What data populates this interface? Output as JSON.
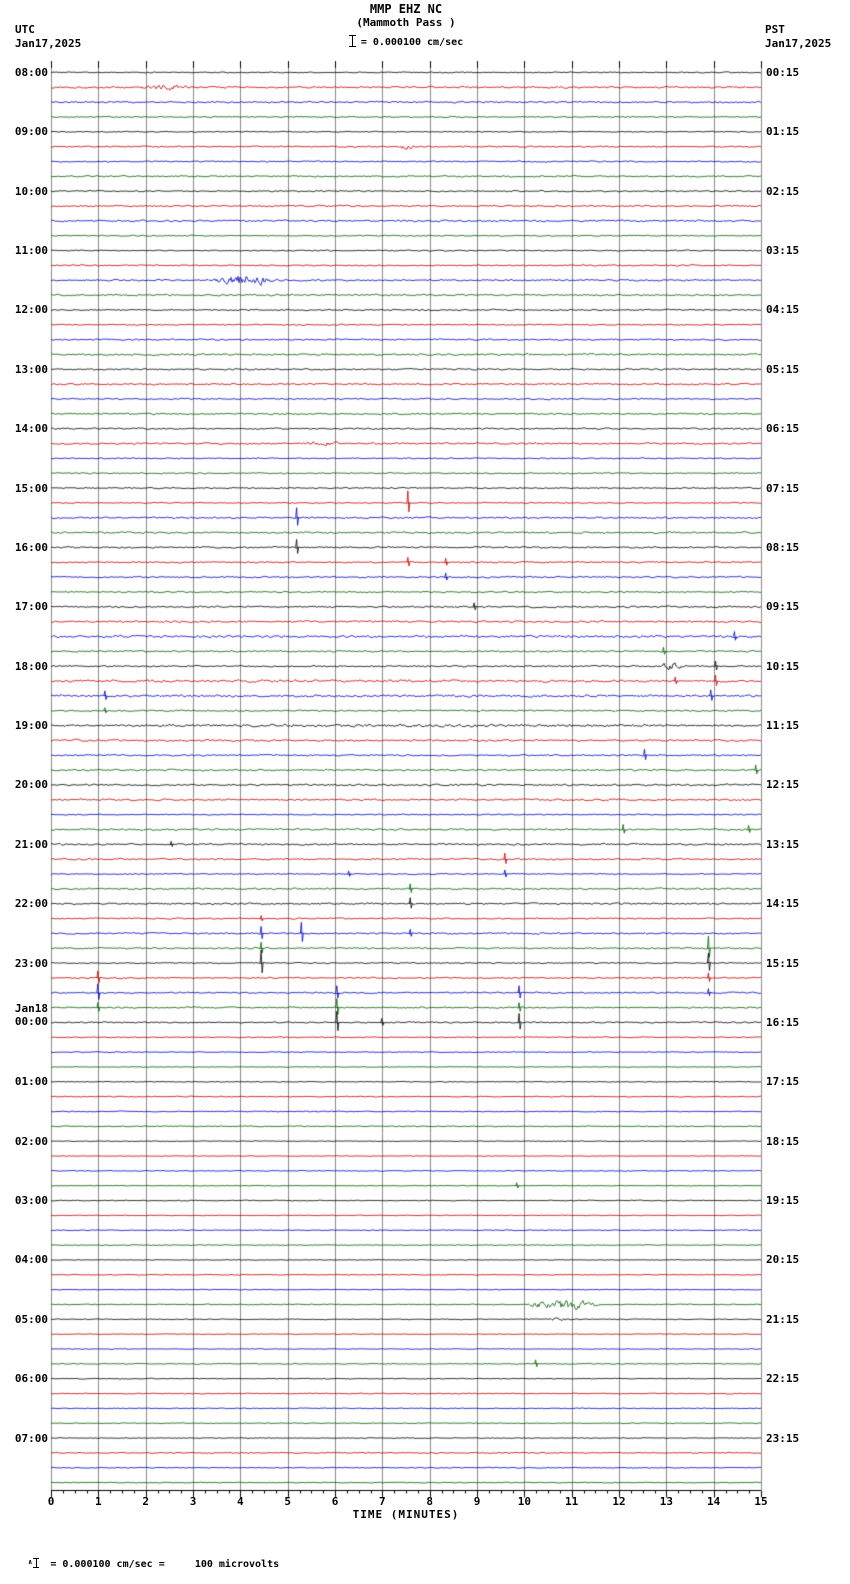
{
  "header": {
    "station_title": "MMP EHZ NC",
    "station_subtitle": "(Mammoth Pass )",
    "scale_text": "= 0.000100 cm/sec",
    "left_timezone": "UTC",
    "left_date": "Jan17,2025",
    "right_timezone": "PST",
    "right_date": "Jan17,2025"
  },
  "footer": {
    "x_axis_label": "TIME (MINUTES)",
    "calibration_text": " = 0.000100 cm/sec =     100 microvolts"
  },
  "icons": {
    "amplitude_caret": "∧"
  },
  "colors": {
    "background": "#ffffff",
    "grid": "#8a8a8a",
    "axis": "#000000",
    "trace_sequence": [
      "#000000",
      "#c00000",
      "#0000c0",
      "#006000"
    ]
  },
  "chart_data": {
    "type": "line",
    "title": "MMP EHZ NC (Mammoth Pass) helicorder, 24 hours of 15-minute traces",
    "xlabel": "TIME (MINUTES)",
    "x_range_minutes": [
      0,
      15
    ],
    "x_ticks": [
      "0",
      "1",
      "2",
      "3",
      "4",
      "5",
      "6",
      "7",
      "8",
      "9",
      "10",
      "11",
      "12",
      "13",
      "14",
      "15"
    ],
    "rows": 96,
    "minutes_per_row": 15,
    "row_color_cycle": [
      "black",
      "red",
      "blue",
      "green"
    ],
    "utc_hour_labels": [
      "08:00",
      "09:00",
      "10:00",
      "11:00",
      "12:00",
      "13:00",
      "14:00",
      "15:00",
      "16:00",
      "17:00",
      "18:00",
      "19:00",
      "20:00",
      "21:00",
      "22:00",
      "23:00",
      "Jan18|00:00",
      "01:00",
      "02:00",
      "03:00",
      "04:00",
      "05:00",
      "06:00",
      "07:00"
    ],
    "pst_hour_labels": [
      "00:15",
      "01:15",
      "02:15",
      "03:15",
      "04:15",
      "05:15",
      "06:15",
      "07:15",
      "08:15",
      "09:15",
      "10:15",
      "11:15",
      "12:15",
      "13:15",
      "14:15",
      "15:15",
      "16:15",
      "17:15",
      "18:15",
      "19:15",
      "20:15",
      "21:15",
      "22:15",
      "23:15"
    ],
    "events": [
      {
        "row": 1,
        "type": "burst",
        "m0": 1.85,
        "m1": 2.9,
        "amp": 3.5
      },
      {
        "row": 5,
        "type": "burst",
        "m0": 7.3,
        "m1": 7.75,
        "amp": 2.5
      },
      {
        "row": 14,
        "type": "burst",
        "m0": 3.4,
        "m1": 4.8,
        "amp": 7
      },
      {
        "row": 25,
        "type": "burst",
        "m0": 5.2,
        "m1": 6.1,
        "amp": 3
      },
      {
        "row": 29,
        "type": "spike",
        "m": 7.55,
        "amp": 12
      },
      {
        "row": 30,
        "type": "spike",
        "m": 5.2,
        "amp": 10
      },
      {
        "row": 32,
        "type": "spike",
        "m": 5.2,
        "amp": 8
      },
      {
        "row": 33,
        "type": "spike",
        "m": 7.55,
        "amp": 5
      },
      {
        "row": 33,
        "type": "spike",
        "m": 8.35,
        "amp": 4
      },
      {
        "row": 34,
        "type": "spike",
        "m": 8.35,
        "amp": 4
      },
      {
        "row": 36,
        "type": "spike",
        "m": 8.95,
        "amp": 4
      },
      {
        "row": 38,
        "type": "spike",
        "m": 14.45,
        "amp": 5
      },
      {
        "row": 39,
        "type": "spike",
        "m": 12.95,
        "amp": 4
      },
      {
        "row": 40,
        "type": "burst",
        "m0": 12.85,
        "m1": 13.35,
        "amp": 5
      },
      {
        "row": 40,
        "type": "spike",
        "m": 14.05,
        "amp": 5
      },
      {
        "row": 41,
        "type": "spike",
        "m": 13.2,
        "amp": 4
      },
      {
        "row": 41,
        "type": "spike",
        "m": 14.05,
        "amp": 6
      },
      {
        "row": 42,
        "type": "spike",
        "m": 1.15,
        "amp": 5
      },
      {
        "row": 42,
        "type": "spike",
        "m": 13.95,
        "amp": 6
      },
      {
        "row": 43,
        "type": "spike",
        "m": 1.15,
        "amp": 3
      },
      {
        "row": 44,
        "type": "burst",
        "m0": 0,
        "m1": 15,
        "amp": 0.8
      },
      {
        "row": 46,
        "type": "spike",
        "m": 12.55,
        "amp": 6
      },
      {
        "row": 47,
        "type": "spike",
        "m": 14.9,
        "amp": 5
      },
      {
        "row": 51,
        "type": "spike",
        "m": 12.1,
        "amp": 5
      },
      {
        "row": 51,
        "type": "spike",
        "m": 14.75,
        "amp": 4
      },
      {
        "row": 52,
        "type": "spike",
        "m": 2.55,
        "amp": 3
      },
      {
        "row": 53,
        "type": "spike",
        "m": 9.6,
        "amp": 6
      },
      {
        "row": 54,
        "type": "spike",
        "m": 9.6,
        "amp": 4
      },
      {
        "row": 54,
        "type": "spike",
        "m": 6.3,
        "amp": 3
      },
      {
        "row": 55,
        "type": "spike",
        "m": 7.6,
        "amp": 5
      },
      {
        "row": 56,
        "type": "spike",
        "m": 7.6,
        "amp": 6
      },
      {
        "row": 57,
        "type": "spike",
        "m": 4.45,
        "amp": 3
      },
      {
        "row": 58,
        "type": "spike",
        "m": 4.45,
        "amp": 7
      },
      {
        "row": 58,
        "type": "spike",
        "m": 5.3,
        "amp": 11
      },
      {
        "row": 58,
        "type": "spike",
        "m": 7.6,
        "amp": 4
      },
      {
        "row": 59,
        "type": "spike",
        "m": 4.45,
        "amp": 6
      },
      {
        "row": 59,
        "type": "spike",
        "m": 13.9,
        "amp": 12
      },
      {
        "row": 60,
        "type": "spike",
        "m": 4.45,
        "amp": 13
      },
      {
        "row": 60,
        "type": "spike",
        "m": 13.9,
        "amp": 10
      },
      {
        "row": 61,
        "type": "spike",
        "m": 1.0,
        "amp": 7
      },
      {
        "row": 61,
        "type": "spike",
        "m": 13.9,
        "amp": 5
      },
      {
        "row": 62,
        "type": "spike",
        "m": 1.0,
        "amp": 9
      },
      {
        "row": 62,
        "type": "spike",
        "m": 6.05,
        "amp": 7
      },
      {
        "row": 62,
        "type": "spike",
        "m": 9.9,
        "amp": 7
      },
      {
        "row": 62,
        "type": "spike",
        "m": 13.9,
        "amp": 4
      },
      {
        "row": 63,
        "type": "spike",
        "m": 1.0,
        "amp": 5
      },
      {
        "row": 63,
        "type": "spike",
        "m": 6.05,
        "amp": 9
      },
      {
        "row": 63,
        "type": "spike",
        "m": 9.9,
        "amp": 5
      },
      {
        "row": 64,
        "type": "spike",
        "m": 6.05,
        "amp": 11
      },
      {
        "row": 64,
        "type": "spike",
        "m": 7.0,
        "amp": 4
      },
      {
        "row": 64,
        "type": "spike",
        "m": 9.9,
        "amp": 9
      },
      {
        "row": 75,
        "type": "spike",
        "m": 9.85,
        "amp": 3
      },
      {
        "row": 83,
        "type": "burst",
        "m0": 10.05,
        "m1": 11.6,
        "amp": 7
      },
      {
        "row": 84,
        "type": "burst",
        "m0": 10.5,
        "m1": 11.0,
        "amp": 2
      },
      {
        "row": 87,
        "type": "spike",
        "m": 10.25,
        "amp": 4
      }
    ]
  }
}
